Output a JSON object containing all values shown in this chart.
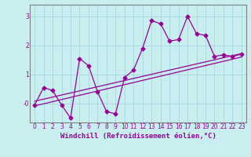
{
  "title": "",
  "xlabel": "Windchill (Refroidissement éolien,°C)",
  "ylabel": "",
  "bg_color": "#c8eef0",
  "grid_color": "#a8dce0",
  "line_color": "#990099",
  "spine_color": "#808080",
  "xlim": [
    -0.5,
    23.5
  ],
  "ylim": [
    -0.65,
    3.4
  ],
  "xticks": [
    0,
    1,
    2,
    3,
    4,
    5,
    6,
    7,
    8,
    9,
    10,
    11,
    12,
    13,
    14,
    15,
    16,
    17,
    18,
    19,
    20,
    21,
    22,
    23
  ],
  "yticks": [
    0,
    1,
    2,
    3
  ],
  "ytick_labels": [
    "-0",
    "1",
    "2",
    "3"
  ],
  "x_data": [
    0,
    1,
    2,
    3,
    4,
    5,
    6,
    7,
    8,
    9,
    10,
    11,
    12,
    13,
    14,
    15,
    16,
    17,
    18,
    19,
    20,
    21,
    22,
    23
  ],
  "y_data": [
    -0.05,
    0.55,
    0.45,
    -0.05,
    -0.5,
    1.55,
    1.3,
    0.4,
    -0.28,
    -0.35,
    0.9,
    1.15,
    1.9,
    2.85,
    2.75,
    2.15,
    2.2,
    3.0,
    2.4,
    2.35,
    1.62,
    1.68,
    1.62,
    1.7
  ],
  "trend1_x": [
    0,
    23
  ],
  "trend1_y": [
    0.08,
    1.72
  ],
  "trend2_x": [
    0,
    23
  ],
  "trend2_y": [
    -0.08,
    1.6
  ],
  "marker": "D",
  "markersize": 2.5,
  "linewidth": 0.9,
  "tick_fontsize": 5.5,
  "xlabel_fontsize": 6.5
}
